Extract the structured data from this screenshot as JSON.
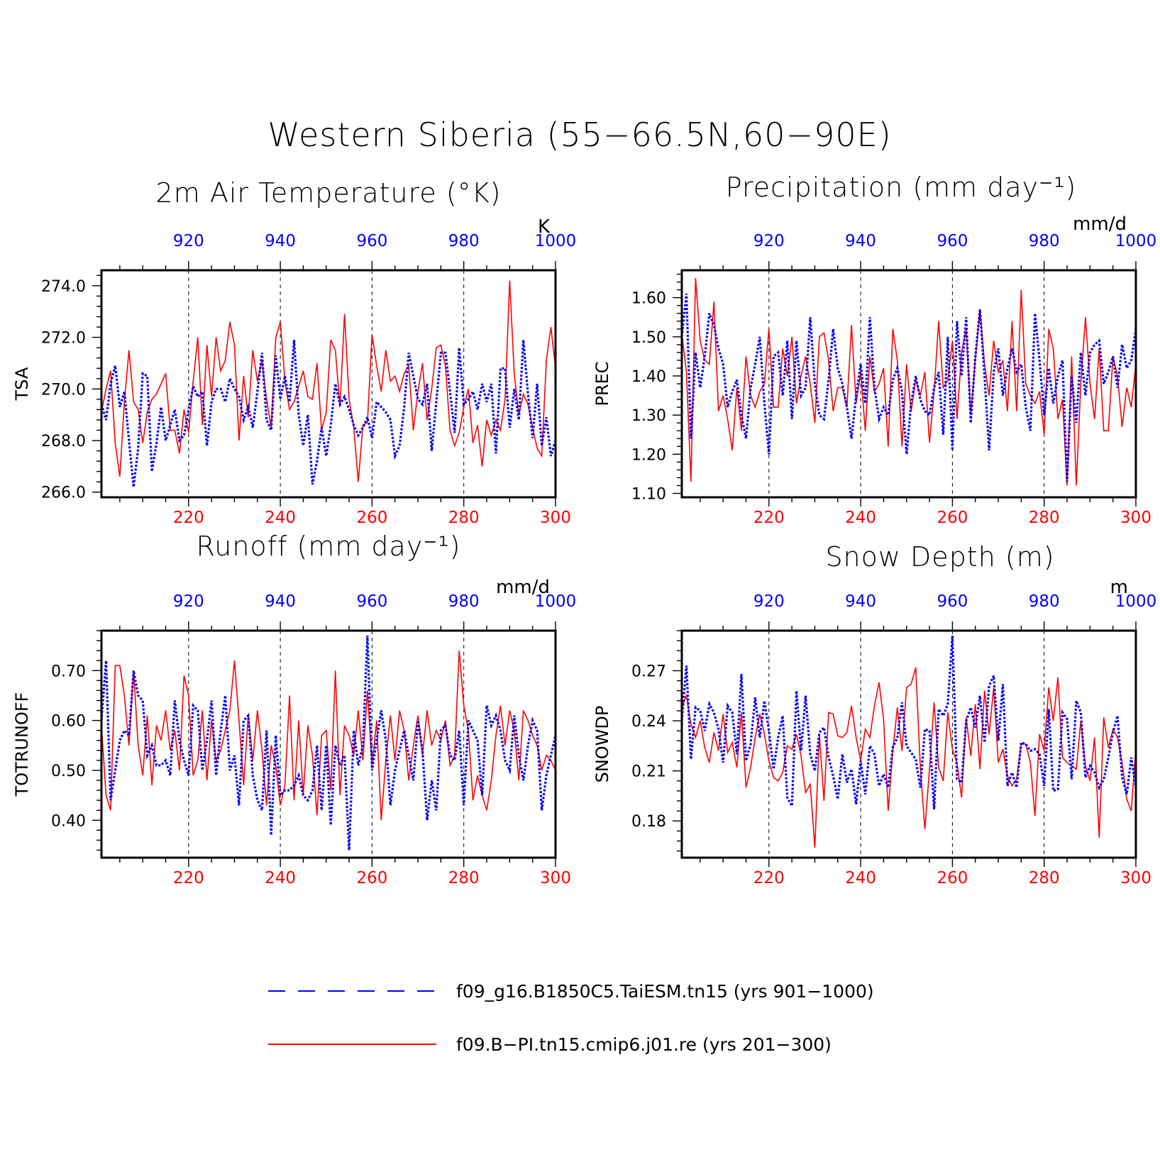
{
  "title": "Western Siberia (55−66.5N,60−90E)",
  "colors": {
    "series_a": "#0000ff",
    "series_b": "#ff0000",
    "axis": "#000000"
  },
  "legend": {
    "items": [
      {
        "label": "f09_g16.B1850C5.TaiESM.tn15 (yrs 901−1000)",
        "style": "dashed",
        "color": "#0000ff"
      },
      {
        "label": "f09.B−PI.tn15.cmip6.j01.re (yrs 201−300)",
        "style": "solid",
        "color": "#ff0000"
      }
    ]
  },
  "chart_data": [
    {
      "type": "line",
      "title": "2m Air Temperature (°K)",
      "ylabel": "TSA",
      "units": "K",
      "ylim": [
        265.8,
        274.6
      ],
      "yticks": [
        266,
        268,
        270,
        272,
        274
      ],
      "ytick_labels": [
        "266.0",
        "268.0",
        "270.0",
        "272.0",
        "274.0"
      ],
      "x_bottom": {
        "range": [
          201,
          300
        ],
        "ticks": [
          220,
          240,
          260,
          280,
          300
        ]
      },
      "x_top": {
        "range": [
          901,
          1000
        ],
        "ticks": [
          920,
          940,
          960,
          980,
          1000
        ]
      },
      "series": [
        {
          "key": "a",
          "x_axis": "top",
          "style": "dashed",
          "color": "#0000ff",
          "values": [
            269.4,
            268.8,
            270.2,
            270.9,
            269.3,
            269.9,
            268.0,
            266.2,
            267.7,
            270.6,
            270.5,
            266.8,
            267.9,
            269.3,
            268.0,
            268.6,
            269.2,
            268.0,
            268.2,
            269.2,
            270.1,
            269.7,
            269.9,
            267.8,
            269.5,
            270.0,
            270.0,
            269.5,
            270.4,
            270.0,
            269.7,
            268.8,
            269.3,
            268.5,
            269.9,
            271.4,
            268.8,
            268.4,
            271.3,
            269.6,
            270.5,
            269.5,
            271.9,
            269.0,
            267.8,
            269.0,
            266.3,
            267.2,
            268.5,
            267.4,
            268.6,
            270.2,
            269.4,
            269.7,
            269.2,
            268.6,
            268.2,
            268.5,
            268.9,
            268.1,
            269.5,
            269.3,
            269.1,
            268.8,
            267.4,
            267.8,
            269.3,
            271.4,
            270.5,
            269.6,
            269.4,
            270.2,
            267.6,
            269.5,
            271.4,
            271.4,
            269.9,
            268.3,
            271.6,
            269.4,
            269.6,
            269.9,
            269.2,
            270.2,
            269.5,
            270.2,
            267.5,
            270.8,
            270.8,
            268.5,
            270.0,
            268.8,
            271.9,
            269.8,
            268.1,
            270.2,
            267.8,
            268.9,
            267.4,
            268.0
          ]
        },
        {
          "key": "b",
          "x_axis": "bottom",
          "style": "solid",
          "color": "#ff0000",
          "values": [
            269.1,
            270.0,
            270.7,
            267.9,
            266.6,
            269.5,
            271.5,
            269.5,
            269.2,
            267.9,
            269.1,
            269.6,
            269.8,
            270.2,
            270.6,
            268.4,
            268.4,
            267.5,
            269.2,
            268.3,
            270.3,
            272.0,
            268.6,
            271.7,
            269.7,
            272.0,
            270.7,
            271.1,
            272.6,
            271.7,
            268.0,
            270.5,
            268.9,
            271.5,
            270.3,
            271.1,
            269.6,
            268.5,
            272.0,
            272.6,
            270.3,
            269.2,
            269.5,
            270.1,
            270.7,
            269.7,
            269.6,
            271.0,
            268.4,
            269.1,
            271.9,
            271.5,
            269.3,
            272.9,
            269.6,
            268.5,
            266.4,
            268.6,
            268.7,
            272.1,
            270.9,
            269.9,
            271.5,
            270.3,
            270.5,
            269.9,
            270.6,
            270.9,
            268.4,
            269.9,
            271.0,
            268.8,
            270.0,
            271.6,
            271.7,
            270.9,
            268.4,
            267.8,
            268.3,
            269.3,
            270.0,
            267.9,
            268.6,
            267.0,
            268.8,
            268.2,
            268.8,
            268.4,
            269.6,
            274.2,
            270.6,
            269.0,
            269.8,
            269.4,
            268.5,
            267.7,
            267.4,
            271.1,
            272.4,
            270.8
          ]
        }
      ]
    },
    {
      "type": "line",
      "title": "Precipitation (mm day⁻¹)",
      "ylabel": "PREC",
      "units": "mm/d",
      "ylim": [
        1.09,
        1.67
      ],
      "yticks": [
        1.1,
        1.2,
        1.3,
        1.4,
        1.5,
        1.6
      ],
      "ytick_labels": [
        "1.10",
        "1.20",
        "1.30",
        "1.40",
        "1.50",
        "1.60"
      ],
      "x_bottom": {
        "range": [
          201,
          300
        ],
        "ticks": [
          220,
          240,
          260,
          280,
          300
        ]
      },
      "x_top": {
        "range": [
          901,
          1000
        ],
        "ticks": [
          920,
          940,
          960,
          980,
          1000
        ]
      },
      "series": [
        {
          "key": "a",
          "x_axis": "top",
          "style": "dashed",
          "color": "#0000ff",
          "values": [
            1.5,
            1.61,
            1.24,
            1.46,
            1.37,
            1.45,
            1.56,
            1.53,
            1.47,
            1.43,
            1.32,
            1.36,
            1.39,
            1.3,
            1.24,
            1.37,
            1.43,
            1.5,
            1.33,
            1.2,
            1.45,
            1.46,
            1.35,
            1.49,
            1.29,
            1.49,
            1.35,
            1.37,
            1.55,
            1.38,
            1.3,
            1.29,
            1.39,
            1.52,
            1.42,
            1.38,
            1.32,
            1.24,
            1.35,
            1.43,
            1.33,
            1.55,
            1.37,
            1.29,
            1.32,
            1.3,
            1.39,
            1.42,
            1.36,
            1.2,
            1.33,
            1.4,
            1.34,
            1.31,
            1.3,
            1.37,
            1.41,
            1.25,
            1.5,
            1.21,
            1.54,
            1.4,
            1.55,
            1.28,
            1.45,
            1.57,
            1.4,
            1.21,
            1.41,
            1.47,
            1.35,
            1.42,
            1.47,
            1.41,
            1.43,
            1.32,
            1.26,
            1.56,
            1.44,
            1.3,
            1.42,
            1.33,
            1.4,
            1.44,
            1.13,
            1.4,
            1.28,
            1.46,
            1.35,
            1.46,
            1.48,
            1.49,
            1.38,
            1.41,
            1.45,
            1.37,
            1.48,
            1.42,
            1.44,
            1.52
          ]
        },
        {
          "key": "b",
          "x_axis": "bottom",
          "style": "solid",
          "color": "#ff0000",
          "values": [
            1.51,
            1.41,
            1.13,
            1.65,
            1.49,
            1.44,
            1.43,
            1.59,
            1.31,
            1.35,
            1.29,
            1.21,
            1.37,
            1.26,
            1.45,
            1.35,
            1.32,
            1.36,
            1.38,
            1.52,
            1.32,
            1.32,
            1.47,
            1.4,
            1.5,
            1.33,
            1.4,
            1.45,
            1.38,
            1.28,
            1.5,
            1.51,
            1.44,
            1.31,
            1.37,
            1.37,
            1.32,
            1.53,
            1.33,
            1.41,
            1.26,
            1.45,
            1.36,
            1.38,
            1.42,
            1.22,
            1.52,
            1.44,
            1.22,
            1.43,
            1.31,
            1.39,
            1.35,
            1.41,
            1.23,
            1.36,
            1.54,
            1.37,
            1.39,
            1.49,
            1.29,
            1.46,
            1.52,
            1.3,
            1.44,
            1.57,
            1.43,
            1.35,
            1.49,
            1.41,
            1.44,
            1.31,
            1.54,
            1.31,
            1.62,
            1.38,
            1.35,
            1.33,
            1.36,
            1.25,
            1.52,
            1.47,
            1.29,
            1.34,
            1.12,
            1.45,
            1.12,
            1.38,
            1.55,
            1.38,
            1.29,
            1.47,
            1.26,
            1.26,
            1.45,
            1.4,
            1.27,
            1.37,
            1.32,
            1.43
          ]
        }
      ]
    },
    {
      "type": "line",
      "title": "Runoff (mm day⁻¹)",
      "ylabel": "TOTRUNOFF",
      "units": "mm/d",
      "ylim": [
        0.325,
        0.78
      ],
      "yticks": [
        0.4,
        0.5,
        0.6,
        0.7
      ],
      "ytick_labels": [
        "0.40",
        "0.50",
        "0.60",
        "0.70"
      ],
      "x_bottom": {
        "range": [
          201,
          300
        ],
        "ticks": [
          220,
          240,
          260,
          280,
          300
        ]
      },
      "x_top": {
        "range": [
          901,
          1000
        ],
        "ticks": [
          920,
          940,
          960,
          980,
          1000
        ]
      },
      "series": [
        {
          "key": "a",
          "x_axis": "top",
          "style": "dashed",
          "color": "#0000ff",
          "values": [
            0.6,
            0.72,
            0.44,
            0.5,
            0.56,
            0.58,
            0.57,
            0.7,
            0.65,
            0.64,
            0.53,
            0.55,
            0.51,
            0.51,
            0.52,
            0.49,
            0.64,
            0.56,
            0.52,
            0.49,
            0.63,
            0.62,
            0.5,
            0.56,
            0.64,
            0.49,
            0.58,
            0.65,
            0.5,
            0.53,
            0.43,
            0.6,
            0.61,
            0.49,
            0.44,
            0.42,
            0.58,
            0.37,
            0.57,
            0.45,
            0.46,
            0.46,
            0.47,
            0.49,
            0.45,
            0.44,
            0.46,
            0.55,
            0.42,
            0.55,
            0.39,
            0.55,
            0.51,
            0.53,
            0.34,
            0.58,
            0.51,
            0.55,
            0.77,
            0.5,
            0.56,
            0.62,
            0.56,
            0.43,
            0.5,
            0.54,
            0.58,
            0.53,
            0.48,
            0.6,
            0.54,
            0.4,
            0.48,
            0.42,
            0.58,
            0.59,
            0.53,
            0.52,
            0.58,
            0.43,
            0.6,
            0.58,
            0.56,
            0.45,
            0.63,
            0.59,
            0.61,
            0.58,
            0.52,
            0.5,
            0.61,
            0.53,
            0.48,
            0.55,
            0.6,
            0.58,
            0.42,
            0.49,
            0.53,
            0.57
          ]
        },
        {
          "key": "b",
          "x_axis": "bottom",
          "style": "solid",
          "color": "#ff0000",
          "values": [
            0.59,
            0.45,
            0.42,
            0.71,
            0.71,
            0.65,
            0.55,
            0.7,
            0.55,
            0.49,
            0.61,
            0.47,
            0.59,
            0.56,
            0.62,
            0.54,
            0.58,
            0.5,
            0.69,
            0.65,
            0.49,
            0.52,
            0.62,
            0.48,
            0.6,
            0.52,
            0.54,
            0.58,
            0.62,
            0.72,
            0.6,
            0.47,
            0.61,
            0.52,
            0.62,
            0.54,
            0.43,
            0.55,
            0.51,
            0.43,
            0.47,
            0.65,
            0.44,
            0.6,
            0.45,
            0.59,
            0.53,
            0.41,
            0.57,
            0.58,
            0.46,
            0.7,
            0.45,
            0.59,
            0.57,
            0.53,
            0.62,
            0.52,
            0.66,
            0.51,
            0.6,
            0.4,
            0.52,
            0.61,
            0.52,
            0.62,
            0.58,
            0.48,
            0.55,
            0.61,
            0.53,
            0.62,
            0.55,
            0.58,
            0.56,
            0.6,
            0.51,
            0.53,
            0.74,
            0.63,
            0.58,
            0.44,
            0.49,
            0.45,
            0.42,
            0.48,
            0.57,
            0.63,
            0.55,
            0.62,
            0.58,
            0.48,
            0.62,
            0.6,
            0.57,
            0.55,
            0.5,
            0.53,
            0.52,
            0.5
          ]
        }
      ]
    },
    {
      "type": "line",
      "title": "Snow Depth (m)",
      "ylabel": "SNOWDP",
      "units": "m",
      "ylim": [
        0.158,
        0.294
      ],
      "yticks": [
        0.18,
        0.21,
        0.24,
        0.27
      ],
      "ytick_labels": [
        "0.18",
        "0.21",
        "0.24",
        "0.27"
      ],
      "x_bottom": {
        "range": [
          201,
          300
        ],
        "ticks": [
          220,
          240,
          260,
          280,
          300
        ]
      },
      "x_top": {
        "range": [
          901,
          1000
        ],
        "ticks": [
          920,
          940,
          960,
          980,
          1000
        ]
      },
      "series": [
        {
          "key": "a",
          "x_axis": "top",
          "style": "dashed",
          "color": "#0000ff",
          "values": [
            0.24,
            0.273,
            0.217,
            0.248,
            0.246,
            0.234,
            0.25,
            0.245,
            0.235,
            0.215,
            0.249,
            0.245,
            0.22,
            0.268,
            0.216,
            0.226,
            0.254,
            0.23,
            0.252,
            0.234,
            0.211,
            0.23,
            0.243,
            0.194,
            0.189,
            0.258,
            0.222,
            0.255,
            0.22,
            0.21,
            0.233,
            0.236,
            0.218,
            0.207,
            0.193,
            0.22,
            0.203,
            0.211,
            0.19,
            0.216,
            0.196,
            0.225,
            0.22,
            0.201,
            0.208,
            0.2,
            0.224,
            0.23,
            0.251,
            0.225,
            0.221,
            0.217,
            0.2,
            0.235,
            0.234,
            0.187,
            0.247,
            0.243,
            0.25,
            0.291,
            0.205,
            0.203,
            0.24,
            0.248,
            0.236,
            0.255,
            0.227,
            0.261,
            0.267,
            0.228,
            0.262,
            0.201,
            0.209,
            0.2,
            0.227,
            0.226,
            0.222,
            0.223,
            0.22,
            0.201,
            0.247,
            0.198,
            0.199,
            0.245,
            0.241,
            0.205,
            0.252,
            0.245,
            0.206,
            0.213,
            0.209,
            0.2,
            0.205,
            0.218,
            0.233,
            0.243,
            0.206,
            0.196,
            0.218,
            0.2
          ]
        },
        {
          "key": "b",
          "x_axis": "bottom",
          "style": "solid",
          "color": "#ff0000",
          "values": [
            0.248,
            0.255,
            0.238,
            0.23,
            0.24,
            0.224,
            0.215,
            0.233,
            0.222,
            0.244,
            0.221,
            0.227,
            0.212,
            0.245,
            0.2,
            0.212,
            0.23,
            0.244,
            0.232,
            0.216,
            0.206,
            0.204,
            0.209,
            0.225,
            0.223,
            0.232,
            0.219,
            0.197,
            0.202,
            0.164,
            0.232,
            0.192,
            0.245,
            0.244,
            0.231,
            0.23,
            0.233,
            0.249,
            0.23,
            0.216,
            0.235,
            0.23,
            0.249,
            0.263,
            0.241,
            0.186,
            0.222,
            0.248,
            0.222,
            0.26,
            0.262,
            0.272,
            0.212,
            0.175,
            0.211,
            0.251,
            0.212,
            0.204,
            0.245,
            0.223,
            0.215,
            0.194,
            0.242,
            0.219,
            0.25,
            0.211,
            0.258,
            0.232,
            0.26,
            0.215,
            0.223,
            0.207,
            0.201,
            0.205,
            0.226,
            0.226,
            0.215,
            0.183,
            0.232,
            0.222,
            0.26,
            0.24,
            0.266,
            0.218,
            0.215,
            0.213,
            0.211,
            0.24,
            0.213,
            0.204,
            0.23,
            0.17,
            0.242,
            0.224,
            0.235,
            0.23,
            0.215,
            0.193,
            0.186,
            0.224
          ]
        }
      ]
    }
  ]
}
